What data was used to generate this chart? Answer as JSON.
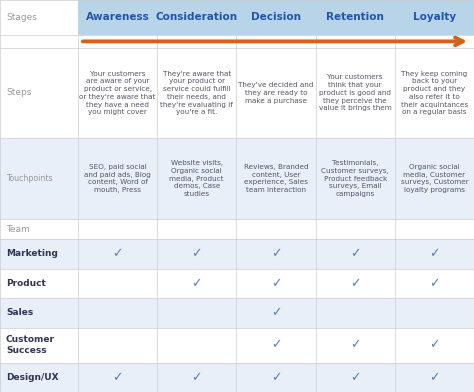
{
  "stages": [
    "Awareness",
    "Consideration",
    "Decision",
    "Retention",
    "Loyalty"
  ],
  "steps_text": [
    "Your customers\nare aware of your\nproduct or service,\nor they're aware that\nthey have a need\nyou might cover",
    "They're aware that\nyour product or\nservice could fulfill\ntheir needs, and\nthey're evaluating if\nyou're a fit.",
    "They've decided and\nthey are ready to\nmake a purchase",
    "Your customers\nthink that your\nproduct is good and\nthey perceive the\nvalue it brings them",
    "They keep coming\nback to your\nproduct and they\nalso refer it to\ntheir acquintances\non a regular basis"
  ],
  "touchpoints_text": [
    "SEO, paid social\nand paid ads, Blog\ncontent, Word of\nmouth, Press",
    "Website visits,\nOrganic social\nmedia, Product\ndemos, Case\nstudies",
    "Reviews, Branded\ncontent, User\nexperience, Sales\nteam interaction",
    "Testimonials,\nCustomer surveys,\nProduct feedback\nsurveys, Email\ncampaigns",
    "Organic social\nmedia, Customer\nsurveys, Customer\nloyalty programs"
  ],
  "checkmarks": {
    "Marketing": [
      true,
      true,
      true,
      true,
      true
    ],
    "Product": [
      false,
      true,
      true,
      true,
      true
    ],
    "Sales": [
      false,
      false,
      true,
      false,
      false
    ],
    "Customer\nSuccess": [
      false,
      false,
      true,
      true,
      true
    ],
    "Design/UX": [
      true,
      true,
      true,
      true,
      true
    ]
  },
  "header_bg": "#b8d4e8",
  "header_text_color": "#2255aa",
  "row_label_color": "#999999",
  "team_label_color": "#333355",
  "alt_row_bg": "#e8eff8",
  "white_bg": "#ffffff",
  "border_color": "#cccccc",
  "arrow_color": "#d96018",
  "check_color": "#5580bb",
  "text_color": "#555566",
  "small_font": 5.2,
  "header_font": 7.5,
  "label_font": 6.5,
  "check_font": 9
}
